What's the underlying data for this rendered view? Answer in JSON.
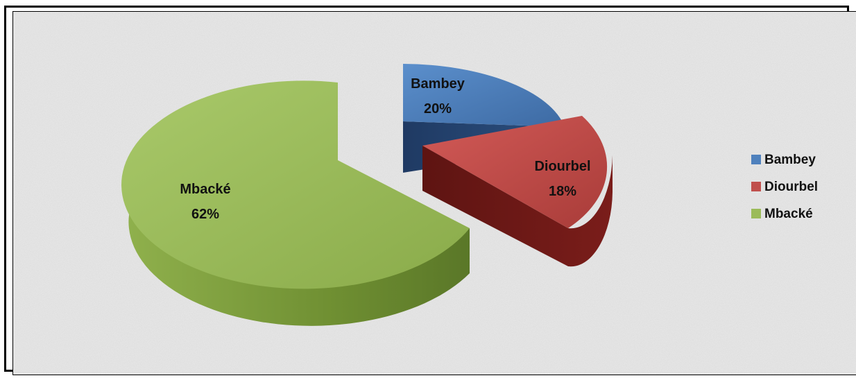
{
  "chart_data": {
    "type": "pie",
    "style": "3d-exploded",
    "categories": [
      "Bambey",
      "Diourbel",
      "Mbacké"
    ],
    "values": [
      20,
      18,
      62
    ],
    "labels": [
      "20%",
      "18%",
      "62%"
    ],
    "colors": [
      "#4f81bd",
      "#c0504d",
      "#9bbb59"
    ],
    "legend_position": "right",
    "title": ""
  }
}
